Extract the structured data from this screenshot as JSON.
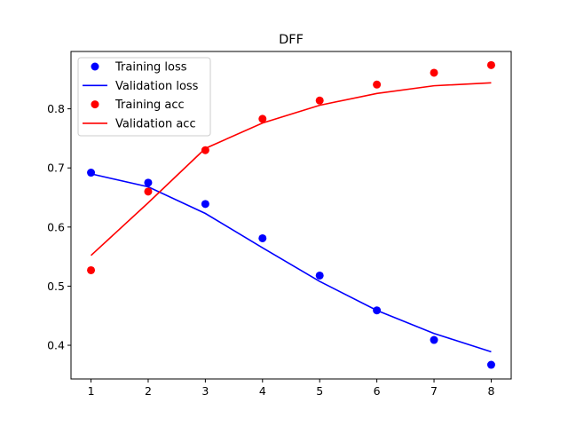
{
  "chart_data": {
    "type": "line",
    "title": "DFF",
    "xlabel": "",
    "ylabel": "",
    "x": [
      1,
      2,
      3,
      4,
      5,
      6,
      7,
      8
    ],
    "xticks": [
      "1",
      "2",
      "3",
      "4",
      "5",
      "6",
      "7",
      "8"
    ],
    "yticks": [
      "0.4",
      "0.5",
      "0.6",
      "0.7",
      "0.8"
    ],
    "xlim": [
      0.65,
      8.35
    ],
    "ylim": [
      0.343,
      0.897
    ],
    "grid": false,
    "legend_position": "top-left",
    "series": [
      {
        "name": "Training loss",
        "style": "points",
        "color": "#0000ff",
        "values": [
          0.692,
          0.675,
          0.639,
          0.581,
          0.518,
          0.459,
          0.409,
          0.367
        ]
      },
      {
        "name": "Validation loss",
        "style": "line",
        "color": "#0000ff",
        "values": [
          0.69,
          0.668,
          0.623,
          0.565,
          0.508,
          0.459,
          0.42,
          0.389
        ]
      },
      {
        "name": "Training acc",
        "style": "points",
        "color": "#ff0000",
        "values": [
          0.527,
          0.66,
          0.73,
          0.783,
          0.814,
          0.841,
          0.861,
          0.874
        ]
      },
      {
        "name": "Validation acc",
        "style": "line",
        "color": "#ff0000",
        "values": [
          0.552,
          0.641,
          0.733,
          0.776,
          0.806,
          0.826,
          0.839,
          0.844
        ]
      }
    ]
  }
}
